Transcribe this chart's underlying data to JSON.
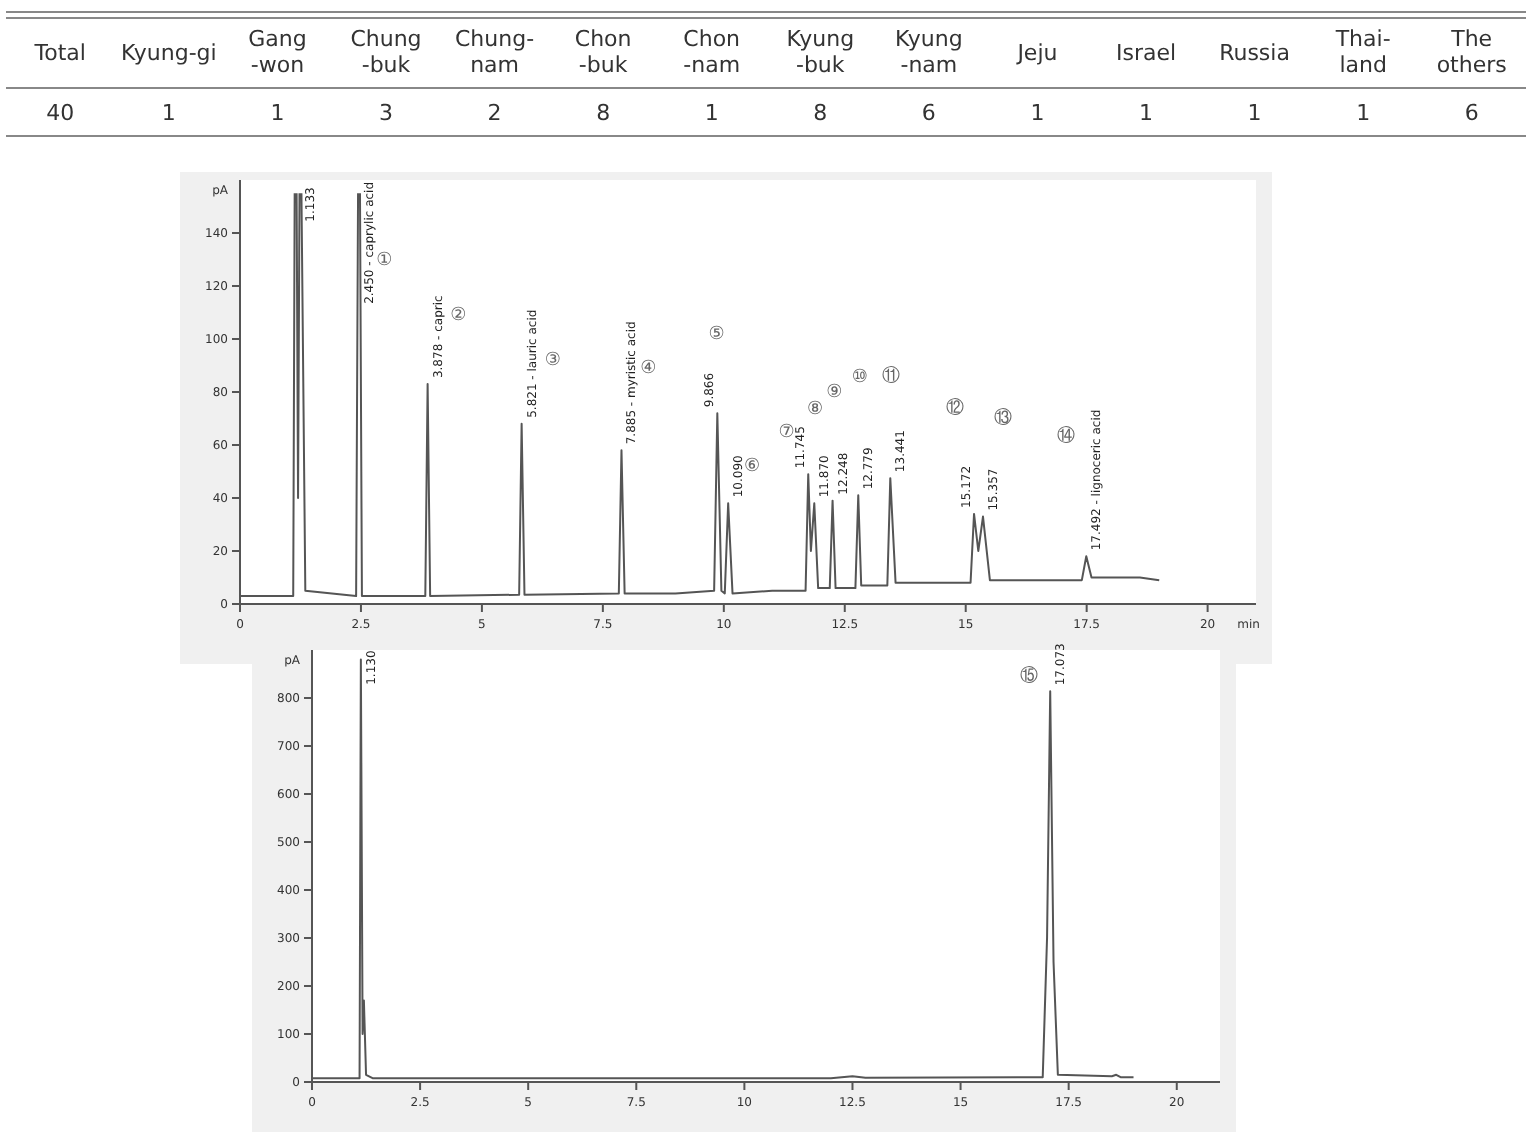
{
  "chart_data": [
    {
      "type": "other",
      "categories": [
        "Total",
        "Kyung-gi",
        "Gang\n-won",
        "Chung\n-buk",
        "Chung-\nnam",
        "Chon\n-buk",
        "Chon\n-nam",
        "Kyung\n-buk",
        "Kyung\n-nam",
        "Jeju",
        "Israel",
        "Russia",
        "Thai-\nland",
        "The\nothers"
      ],
      "values": [
        40,
        1,
        1,
        3,
        2,
        8,
        1,
        8,
        6,
        1,
        1,
        1,
        1,
        6
      ],
      "data_labels": true
    },
    {
      "type": "line",
      "xlabel": "min",
      "ylabel": "pA",
      "xlim": [
        0,
        21
      ],
      "ylim": [
        0,
        160
      ],
      "xticks": [
        0,
        2.5,
        5,
        7.5,
        10,
        12.5,
        15,
        17.5,
        20
      ],
      "yticks": [
        0,
        20,
        40,
        60,
        80,
        100,
        120,
        140
      ],
      "series": [
        {
          "color": "#555555",
          "x": [
            0,
            1.1,
            1.13,
            1.15,
            1.17,
            1.2,
            1.23,
            1.25,
            1.27,
            1.35,
            2.4,
            2.44,
            2.46,
            2.48,
            2.52,
            3.83,
            3.878,
            3.93,
            5.77,
            5.821,
            5.88,
            7.83,
            7.885,
            7.95,
            9.0,
            9.8,
            9.866,
            9.95,
            10.02,
            10.09,
            10.18,
            11,
            11.69,
            11.745,
            11.8,
            11.87,
            11.95,
            12.19,
            12.248,
            12.31,
            12.72,
            12.779,
            12.84,
            13.38,
            13.441,
            13.55,
            15.1,
            15.172,
            15.26,
            15.357,
            15.5,
            17.4,
            17.492,
            17.6,
            18.6,
            19
          ],
          "values": [
            3,
            3,
            155,
            null,
            155,
            40,
            155,
            null,
            155,
            5,
            3,
            155,
            null,
            155,
            3,
            3,
            83,
            3,
            3.5,
            68,
            3.5,
            4,
            58,
            4,
            4,
            5,
            72,
            5,
            4,
            38,
            4,
            5,
            5,
            49,
            20,
            38,
            6,
            6,
            39,
            6,
            6,
            41,
            7,
            7,
            47.5,
            8,
            8,
            34,
            20,
            33,
            9,
            9,
            18,
            10,
            10,
            9
          ]
        }
      ],
      "annotations": [
        {
          "text": "1.133",
          "x": 1.25,
          "y": 142
        },
        {
          "text": "2.450 - caprylic acid",
          "x": 2.46,
          "y": 111
        },
        {
          "text": "3.878 - capric",
          "x": 3.878,
          "y": 83
        },
        {
          "text": "5.821 - lauric acid",
          "x": 5.821,
          "y": 68
        },
        {
          "text": "7.885 - myristic acid",
          "x": 7.885,
          "y": 58
        },
        {
          "text": "9.866",
          "x": 9.866,
          "y": 72
        },
        {
          "text": "10.090",
          "x": 10.09,
          "y": 38
        },
        {
          "text": "11.745",
          "x": 11.745,
          "y": 49
        },
        {
          "text": "11.870",
          "x": 11.87,
          "y": 38
        },
        {
          "text": "12.248",
          "x": 12.248,
          "y": 39
        },
        {
          "text": "12.779",
          "x": 12.779,
          "y": 41
        },
        {
          "text": "13.441",
          "x": 13.441,
          "y": 47.5
        },
        {
          "text": "15.172",
          "x": 15.172,
          "y": 34
        },
        {
          "text": "15.357",
          "x": 15.357,
          "y": 33
        },
        {
          "text": "17.492 - lignoceric acid",
          "x": 17.492,
          "y": 18
        },
        "①",
        "②",
        "③",
        "④",
        "⑤",
        "⑥",
        "⑦",
        "⑧",
        "⑨",
        "⑩",
        "⑪",
        "⑫",
        "⑬",
        "⑭"
      ]
    },
    {
      "type": "line",
      "ylabel": "pA",
      "xlim": [
        0,
        21
      ],
      "ylim": [
        0,
        900
      ],
      "xticks": [
        0,
        2.5,
        5,
        7.5,
        10,
        12.5,
        15,
        17.5,
        20
      ],
      "yticks": [
        0,
        100,
        200,
        300,
        400,
        500,
        600,
        700,
        800
      ],
      "series": [
        {
          "color": "#555555",
          "x": [
            0,
            1.1,
            1.13,
            1.17,
            1.2,
            1.25,
            1.4,
            12,
            12.5,
            12.8,
            16.9,
            17.0,
            17.073,
            17.15,
            17.25,
            18.5,
            18.6,
            18.7,
            19
          ],
          "values": [
            8,
            8,
            880,
            100,
            170,
            15,
            8,
            8,
            12,
            9,
            10,
            300,
            814,
            250,
            15,
            12,
            15,
            10,
            10
          ]
        }
      ],
      "annotations": [
        {
          "text": "1.130",
          "x": 1.13,
          "y": 815
        },
        {
          "text": "17.073",
          "x": 17.073,
          "y": 814
        },
        "⑮"
      ]
    }
  ]
}
